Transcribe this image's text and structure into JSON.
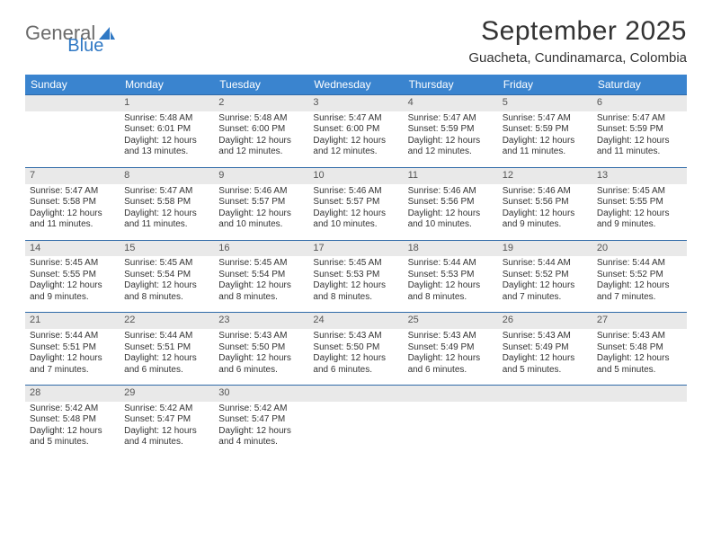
{
  "logo": {
    "word1": "General",
    "word2": "Blue",
    "text_color": "#6b6b6b",
    "accent_color": "#2f78c4"
  },
  "title": "September 2025",
  "location": "Guacheta, Cundinamarca, Colombia",
  "header_bg": "#3a84cf",
  "header_fg": "#ffffff",
  "daynum_bg": "#e9e9e9",
  "daynum_border": "#2f6aa8",
  "weekdays": [
    "Sunday",
    "Monday",
    "Tuesday",
    "Wednesday",
    "Thursday",
    "Friday",
    "Saturday"
  ],
  "weeks": [
    [
      {
        "n": "",
        "sunrise": "",
        "sunset": "",
        "daylight": ""
      },
      {
        "n": "1",
        "sunrise": "Sunrise: 5:48 AM",
        "sunset": "Sunset: 6:01 PM",
        "daylight": "Daylight: 12 hours and 13 minutes."
      },
      {
        "n": "2",
        "sunrise": "Sunrise: 5:48 AM",
        "sunset": "Sunset: 6:00 PM",
        "daylight": "Daylight: 12 hours and 12 minutes."
      },
      {
        "n": "3",
        "sunrise": "Sunrise: 5:47 AM",
        "sunset": "Sunset: 6:00 PM",
        "daylight": "Daylight: 12 hours and 12 minutes."
      },
      {
        "n": "4",
        "sunrise": "Sunrise: 5:47 AM",
        "sunset": "Sunset: 5:59 PM",
        "daylight": "Daylight: 12 hours and 12 minutes."
      },
      {
        "n": "5",
        "sunrise": "Sunrise: 5:47 AM",
        "sunset": "Sunset: 5:59 PM",
        "daylight": "Daylight: 12 hours and 11 minutes."
      },
      {
        "n": "6",
        "sunrise": "Sunrise: 5:47 AM",
        "sunset": "Sunset: 5:59 PM",
        "daylight": "Daylight: 12 hours and 11 minutes."
      }
    ],
    [
      {
        "n": "7",
        "sunrise": "Sunrise: 5:47 AM",
        "sunset": "Sunset: 5:58 PM",
        "daylight": "Daylight: 12 hours and 11 minutes."
      },
      {
        "n": "8",
        "sunrise": "Sunrise: 5:47 AM",
        "sunset": "Sunset: 5:58 PM",
        "daylight": "Daylight: 12 hours and 11 minutes."
      },
      {
        "n": "9",
        "sunrise": "Sunrise: 5:46 AM",
        "sunset": "Sunset: 5:57 PM",
        "daylight": "Daylight: 12 hours and 10 minutes."
      },
      {
        "n": "10",
        "sunrise": "Sunrise: 5:46 AM",
        "sunset": "Sunset: 5:57 PM",
        "daylight": "Daylight: 12 hours and 10 minutes."
      },
      {
        "n": "11",
        "sunrise": "Sunrise: 5:46 AM",
        "sunset": "Sunset: 5:56 PM",
        "daylight": "Daylight: 12 hours and 10 minutes."
      },
      {
        "n": "12",
        "sunrise": "Sunrise: 5:46 AM",
        "sunset": "Sunset: 5:56 PM",
        "daylight": "Daylight: 12 hours and 9 minutes."
      },
      {
        "n": "13",
        "sunrise": "Sunrise: 5:45 AM",
        "sunset": "Sunset: 5:55 PM",
        "daylight": "Daylight: 12 hours and 9 minutes."
      }
    ],
    [
      {
        "n": "14",
        "sunrise": "Sunrise: 5:45 AM",
        "sunset": "Sunset: 5:55 PM",
        "daylight": "Daylight: 12 hours and 9 minutes."
      },
      {
        "n": "15",
        "sunrise": "Sunrise: 5:45 AM",
        "sunset": "Sunset: 5:54 PM",
        "daylight": "Daylight: 12 hours and 8 minutes."
      },
      {
        "n": "16",
        "sunrise": "Sunrise: 5:45 AM",
        "sunset": "Sunset: 5:54 PM",
        "daylight": "Daylight: 12 hours and 8 minutes."
      },
      {
        "n": "17",
        "sunrise": "Sunrise: 5:45 AM",
        "sunset": "Sunset: 5:53 PM",
        "daylight": "Daylight: 12 hours and 8 minutes."
      },
      {
        "n": "18",
        "sunrise": "Sunrise: 5:44 AM",
        "sunset": "Sunset: 5:53 PM",
        "daylight": "Daylight: 12 hours and 8 minutes."
      },
      {
        "n": "19",
        "sunrise": "Sunrise: 5:44 AM",
        "sunset": "Sunset: 5:52 PM",
        "daylight": "Daylight: 12 hours and 7 minutes."
      },
      {
        "n": "20",
        "sunrise": "Sunrise: 5:44 AM",
        "sunset": "Sunset: 5:52 PM",
        "daylight": "Daylight: 12 hours and 7 minutes."
      }
    ],
    [
      {
        "n": "21",
        "sunrise": "Sunrise: 5:44 AM",
        "sunset": "Sunset: 5:51 PM",
        "daylight": "Daylight: 12 hours and 7 minutes."
      },
      {
        "n": "22",
        "sunrise": "Sunrise: 5:44 AM",
        "sunset": "Sunset: 5:51 PM",
        "daylight": "Daylight: 12 hours and 6 minutes."
      },
      {
        "n": "23",
        "sunrise": "Sunrise: 5:43 AM",
        "sunset": "Sunset: 5:50 PM",
        "daylight": "Daylight: 12 hours and 6 minutes."
      },
      {
        "n": "24",
        "sunrise": "Sunrise: 5:43 AM",
        "sunset": "Sunset: 5:50 PM",
        "daylight": "Daylight: 12 hours and 6 minutes."
      },
      {
        "n": "25",
        "sunrise": "Sunrise: 5:43 AM",
        "sunset": "Sunset: 5:49 PM",
        "daylight": "Daylight: 12 hours and 6 minutes."
      },
      {
        "n": "26",
        "sunrise": "Sunrise: 5:43 AM",
        "sunset": "Sunset: 5:49 PM",
        "daylight": "Daylight: 12 hours and 5 minutes."
      },
      {
        "n": "27",
        "sunrise": "Sunrise: 5:43 AM",
        "sunset": "Sunset: 5:48 PM",
        "daylight": "Daylight: 12 hours and 5 minutes."
      }
    ],
    [
      {
        "n": "28",
        "sunrise": "Sunrise: 5:42 AM",
        "sunset": "Sunset: 5:48 PM",
        "daylight": "Daylight: 12 hours and 5 minutes."
      },
      {
        "n": "29",
        "sunrise": "Sunrise: 5:42 AM",
        "sunset": "Sunset: 5:47 PM",
        "daylight": "Daylight: 12 hours and 4 minutes."
      },
      {
        "n": "30",
        "sunrise": "Sunrise: 5:42 AM",
        "sunset": "Sunset: 5:47 PM",
        "daylight": "Daylight: 12 hours and 4 minutes."
      },
      {
        "n": "",
        "sunrise": "",
        "sunset": "",
        "daylight": ""
      },
      {
        "n": "",
        "sunrise": "",
        "sunset": "",
        "daylight": ""
      },
      {
        "n": "",
        "sunrise": "",
        "sunset": "",
        "daylight": ""
      },
      {
        "n": "",
        "sunrise": "",
        "sunset": "",
        "daylight": ""
      }
    ]
  ]
}
